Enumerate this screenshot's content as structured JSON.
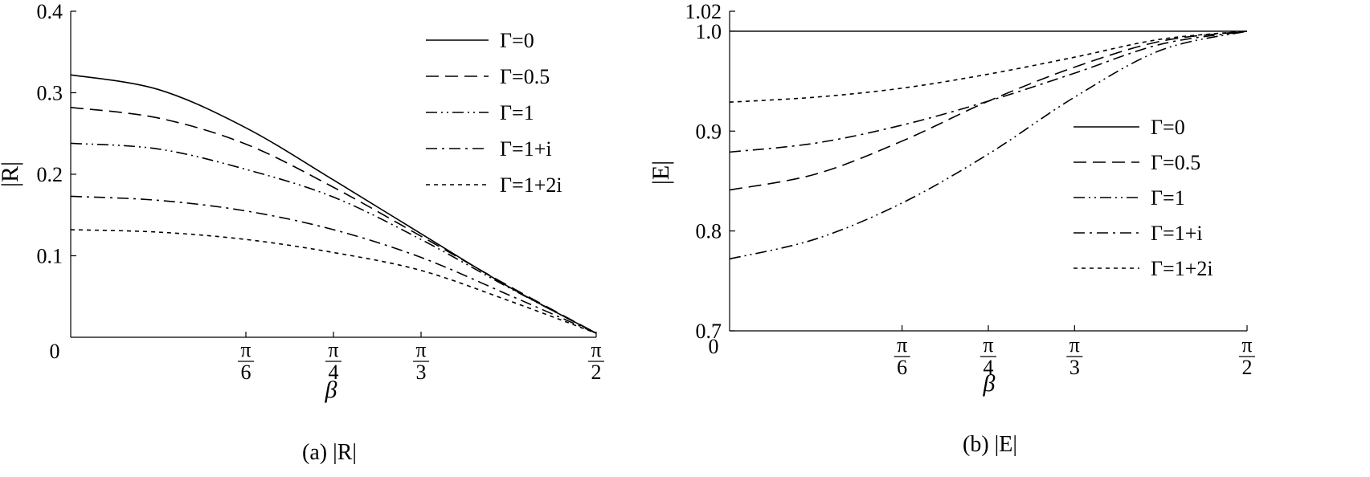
{
  "chart_data": [
    {
      "type": "line",
      "caption": "(a) |R|",
      "xlabel": "β",
      "ylabel": "|R|",
      "x_ticks": [
        {
          "value": 0,
          "label": "0"
        },
        {
          "value": 0.5236,
          "label_num": "π",
          "label_den": "6"
        },
        {
          "value": 0.7854,
          "label_num": "π",
          "label_den": "4"
        },
        {
          "value": 1.0472,
          "label_num": "π",
          "label_den": "3"
        },
        {
          "value": 1.5708,
          "label_num": "π",
          "label_den": "2"
        }
      ],
      "y_ticks": [
        "0.1",
        "0.2",
        "0.3",
        "0.4"
      ],
      "xlim": [
        0,
        1.5708
      ],
      "ylim": [
        0,
        0.4
      ],
      "legend_position": "top-right",
      "x": [
        0,
        0.2618,
        0.5236,
        0.7854,
        1.0472,
        1.309,
        1.5708
      ],
      "series": [
        {
          "name": "Γ=0",
          "dash": "solid",
          "values": [
            0.322,
            0.304,
            0.257,
            0.193,
            0.127,
            0.062,
            0.005
          ]
        },
        {
          "name": "Γ=0.5",
          "dash": "dash",
          "values": [
            0.282,
            0.269,
            0.237,
            0.184,
            0.124,
            0.063,
            0.005
          ]
        },
        {
          "name": "Γ=1",
          "dash": "dashdotdot",
          "values": [
            0.238,
            0.231,
            0.206,
            0.172,
            0.12,
            0.061,
            0.005
          ]
        },
        {
          "name": "Γ=1+i",
          "dash": "dashdot",
          "values": [
            0.173,
            0.168,
            0.155,
            0.132,
            0.098,
            0.052,
            0.005
          ]
        },
        {
          "name": "Γ=1+2i",
          "dash": "dot",
          "values": [
            0.132,
            0.129,
            0.12,
            0.104,
            0.082,
            0.045,
            0.005
          ]
        }
      ]
    },
    {
      "type": "line",
      "caption": "(b) |E|",
      "xlabel": "β",
      "ylabel": "|E|",
      "x_ticks": [
        {
          "value": 0,
          "label": "0"
        },
        {
          "value": 0.5236,
          "label_num": "π",
          "label_den": "6"
        },
        {
          "value": 0.7854,
          "label_num": "π",
          "label_den": "4"
        },
        {
          "value": 1.0472,
          "label_num": "π",
          "label_den": "3"
        },
        {
          "value": 1.5708,
          "label_num": "π",
          "label_den": "2"
        }
      ],
      "y_ticks": [
        "0.7",
        "0.8",
        "0.9",
        "1.0",
        "1.02"
      ],
      "y_tick_values": [
        0.7,
        0.8,
        0.9,
        1.0,
        1.02
      ],
      "xlim": [
        0,
        1.5708
      ],
      "ylim": [
        0.7,
        1.02
      ],
      "legend_position": "center-right",
      "x": [
        0,
        0.2618,
        0.5236,
        0.7854,
        1.0472,
        1.309,
        1.5708
      ],
      "series": [
        {
          "name": "Γ=0",
          "dash": "solid",
          "values": [
            1.0,
            1.0,
            1.0,
            1.0,
            1.0,
            1.0,
            1.0
          ]
        },
        {
          "name": "Γ=0.5",
          "dash": "dash",
          "values": [
            0.841,
            0.857,
            0.89,
            0.93,
            0.964,
            0.99,
            1.0
          ]
        },
        {
          "name": "Γ=1",
          "dash": "dashdotdot",
          "values": [
            0.772,
            0.792,
            0.828,
            0.877,
            0.934,
            0.981,
            1.0
          ]
        },
        {
          "name": "Γ=1+i",
          "dash": "dashdot",
          "values": [
            0.879,
            0.888,
            0.906,
            0.93,
            0.958,
            0.987,
            1.0
          ]
        },
        {
          "name": "Γ=1+2i",
          "dash": "dot",
          "values": [
            0.929,
            0.934,
            0.943,
            0.957,
            0.974,
            0.992,
            1.0
          ]
        }
      ]
    }
  ]
}
